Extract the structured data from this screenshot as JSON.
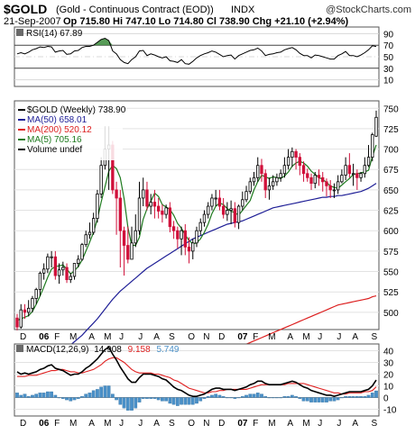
{
  "header": {
    "symbol": "$GOLD",
    "name": "(Gold - Continuous Contract (EOD))",
    "exchange": "INDX",
    "copyright": "@StockCharts.com",
    "date": "21-Sep-2007",
    "ohlc_text": "Op 715.80  Hi 747.10  Lo 714.80  Cl 738.90  Chg +21.10 (+2.94%)",
    "change_arrow": "▲"
  },
  "rsi_panel": {
    "label": "RSI(14) 67.89",
    "ticks": [
      "90",
      "70",
      "50",
      "30",
      "10"
    ]
  },
  "price_panel": {
    "ticks": [
      "750",
      "725",
      "700",
      "675",
      "650",
      "625",
      "600",
      "575",
      "550",
      "525",
      "500"
    ],
    "legend": [
      {
        "text": "$GOLD (Weekly) 738.90",
        "color": "#000000"
      },
      {
        "text": "MA(50) 658.01",
        "color": "#1e1e96"
      },
      {
        "text": "MA(200) 520.12",
        "color": "#dc1e1e"
      },
      {
        "text": "MA(5) 705.16",
        "color": "#1e7a1e"
      },
      {
        "text": "Volume undef",
        "color": "#000000"
      }
    ]
  },
  "macd_panel": {
    "label": "MACD(12,26,9)",
    "macd_value": "14.908",
    "signal_value": "9.158",
    "hist_value": "5.749",
    "ticks": [
      "40",
      "30",
      "20",
      "10",
      "0",
      "-10"
    ]
  },
  "time_axis": [
    "D",
    "06",
    "F",
    "M",
    "A",
    "M",
    "J",
    "J",
    "A",
    "S",
    "O",
    "N",
    "D",
    "07",
    "F",
    "M",
    "A",
    "M",
    "J",
    "J",
    "A",
    "S"
  ],
  "colors": {
    "up": "#000000",
    "down": "#d0103a",
    "ma50": "#1e1e96",
    "ma200": "#dc1e1e",
    "ma5": "#1e7a1e",
    "signal": "#e02020",
    "histogram": "#4a90c8",
    "rsi_fill": "#3a8a3a"
  },
  "chart_data": {
    "type": "candlestick",
    "period": "weekly",
    "x": [
      "2005-12-02",
      "2005-12-09",
      "2005-12-16",
      "2005-12-23",
      "2005-12-30",
      "2006-01-06",
      "2006-01-13",
      "2006-01-20",
      "2006-01-27",
      "2006-02-03",
      "2006-02-10",
      "2006-02-17",
      "2006-02-24",
      "2006-03-03",
      "2006-03-10",
      "2006-03-17",
      "2006-03-24",
      "2006-03-31",
      "2006-04-07",
      "2006-04-14",
      "2006-04-21",
      "2006-04-28",
      "2006-05-05",
      "2006-05-12",
      "2006-05-19",
      "2006-05-26",
      "2006-06-02",
      "2006-06-09",
      "2006-06-16",
      "2006-06-23",
      "2006-06-30",
      "2006-07-07",
      "2006-07-14",
      "2006-07-21",
      "2006-07-28",
      "2006-08-04",
      "2006-08-11",
      "2006-08-18",
      "2006-08-25",
      "2006-09-01",
      "2006-09-08",
      "2006-09-15",
      "2006-09-22",
      "2006-09-29",
      "2006-10-06",
      "2006-10-13",
      "2006-10-20",
      "2006-10-27",
      "2006-11-03",
      "2006-11-10",
      "2006-11-17",
      "2006-11-24",
      "2006-12-01",
      "2006-12-08",
      "2006-12-15",
      "2006-12-22",
      "2006-12-29",
      "2007-01-05",
      "2007-01-12",
      "2007-01-19",
      "2007-01-26",
      "2007-02-02",
      "2007-02-09",
      "2007-02-16",
      "2007-02-23",
      "2007-03-02",
      "2007-03-09",
      "2007-03-16",
      "2007-03-23",
      "2007-03-30",
      "2007-04-06",
      "2007-04-13",
      "2007-04-20",
      "2007-04-27",
      "2007-05-04",
      "2007-05-11",
      "2007-05-18",
      "2007-05-25",
      "2007-06-01",
      "2007-06-08",
      "2007-06-15",
      "2007-06-22",
      "2007-06-29",
      "2007-07-06",
      "2007-07-13",
      "2007-07-20",
      "2007-07-27",
      "2007-08-03",
      "2007-08-10",
      "2007-08-17",
      "2007-08-24",
      "2007-08-31",
      "2007-09-07",
      "2007-09-14",
      "2007-09-21"
    ],
    "open": [
      493,
      482,
      503,
      500,
      505,
      517,
      528,
      548,
      553,
      568,
      568,
      545,
      552,
      555,
      540,
      544,
      560,
      565,
      583,
      595,
      598,
      615,
      645,
      680,
      700,
      705,
      650,
      640,
      600,
      582,
      565,
      585,
      600,
      640,
      650,
      630,
      635,
      630,
      624,
      620,
      628,
      605,
      600,
      590,
      600,
      580,
      575,
      585,
      600,
      610,
      620,
      630,
      640,
      640,
      630,
      620,
      625,
      627,
      610,
      630,
      638,
      648,
      660,
      665,
      680,
      670,
      650,
      655,
      660,
      665,
      670,
      680,
      690,
      697,
      690,
      680,
      670,
      665,
      658,
      668,
      665,
      660,
      655,
      650,
      650,
      660,
      668,
      680,
      670,
      670,
      665,
      670,
      680,
      690,
      715.8
    ],
    "high": [
      498,
      510,
      510,
      515,
      520,
      530,
      550,
      560,
      572,
      575,
      575,
      560,
      562,
      560,
      548,
      558,
      570,
      585,
      600,
      610,
      622,
      650,
      690,
      728,
      728,
      710,
      660,
      650,
      605,
      605,
      605,
      620,
      660,
      665,
      660,
      645,
      650,
      640,
      632,
      632,
      635,
      612,
      605,
      605,
      608,
      592,
      590,
      605,
      615,
      625,
      635,
      645,
      650,
      650,
      640,
      635,
      637,
      635,
      632,
      648,
      655,
      665,
      672,
      690,
      688,
      675,
      665,
      668,
      670,
      675,
      690,
      700,
      702,
      700,
      695,
      685,
      676,
      670,
      672,
      675,
      672,
      664,
      662,
      658,
      668,
      675,
      690,
      695,
      682,
      675,
      672,
      690,
      705,
      720,
      747.1
    ],
    "low": [
      478,
      480,
      492,
      495,
      500,
      510,
      520,
      540,
      548,
      555,
      540,
      535,
      545,
      536,
      536,
      540,
      555,
      563,
      580,
      590,
      595,
      610,
      640,
      675,
      650,
      645,
      595,
      555,
      545,
      560,
      565,
      580,
      595,
      630,
      625,
      620,
      615,
      615,
      610,
      615,
      598,
      590,
      578,
      570,
      570,
      560,
      565,
      580,
      595,
      605,
      615,
      625,
      630,
      625,
      615,
      612,
      608,
      604,
      602,
      625,
      635,
      645,
      655,
      660,
      660,
      640,
      638,
      650,
      655,
      660,
      665,
      675,
      678,
      675,
      668,
      660,
      660,
      650,
      652,
      655,
      648,
      642,
      640,
      640,
      645,
      658,
      662,
      665,
      655,
      650,
      660,
      665,
      678,
      685,
      714.8
    ],
    "close": [
      482,
      503,
      500,
      505,
      517,
      528,
      548,
      553,
      568,
      568,
      545,
      552,
      555,
      540,
      544,
      560,
      565,
      583,
      595,
      598,
      615,
      645,
      680,
      700,
      705,
      650,
      640,
      600,
      582,
      565,
      585,
      600,
      640,
      650,
      630,
      635,
      630,
      624,
      620,
      628,
      605,
      600,
      590,
      600,
      580,
      575,
      585,
      600,
      610,
      620,
      630,
      640,
      640,
      630,
      620,
      625,
      627,
      610,
      630,
      638,
      648,
      660,
      665,
      680,
      670,
      650,
      655,
      660,
      665,
      670,
      680,
      690,
      697,
      690,
      680,
      670,
      665,
      658,
      668,
      665,
      660,
      655,
      650,
      650,
      660,
      668,
      680,
      670,
      670,
      665,
      670,
      680,
      690,
      717.8,
      738.9
    ],
    "ma50": [
      408,
      411,
      414,
      417,
      420,
      423,
      427,
      431,
      435,
      440,
      444,
      448,
      452,
      456,
      460,
      464,
      468,
      472,
      477,
      482,
      487,
      492,
      498,
      504,
      510,
      516,
      521,
      526,
      530,
      534,
      538,
      542,
      546,
      550,
      554,
      557,
      560,
      563,
      566,
      569,
      572,
      575,
      578,
      581,
      584,
      587,
      590,
      592,
      594,
      596,
      598,
      600,
      602,
      604,
      606,
      608,
      609,
      610,
      611,
      612,
      614,
      616,
      618,
      620,
      622,
      624,
      626,
      628,
      629,
      630,
      631,
      632,
      633,
      634,
      635,
      636,
      637,
      638,
      639,
      640,
      641,
      641,
      642,
      642,
      643,
      643,
      644,
      645,
      646,
      647,
      648,
      650,
      652,
      655,
      658.01
    ],
    "ma200": [
      400,
      401,
      402,
      403,
      404,
      405,
      406,
      407,
      408,
      409,
      410,
      411,
      412,
      413,
      414,
      415,
      416,
      417,
      418,
      419,
      420,
      421,
      422,
      423,
      424,
      425,
      426,
      427,
      428,
      429,
      430,
      431,
      432,
      433,
      434,
      435,
      436,
      437,
      438,
      439,
      440,
      441,
      442,
      443,
      444,
      445,
      446,
      447,
      448,
      449,
      450,
      451,
      452,
      453,
      454,
      455,
      456,
      457,
      458,
      459,
      461,
      463,
      465,
      467,
      469,
      471,
      473,
      475,
      477,
      479,
      481,
      483,
      485,
      487,
      489,
      491,
      493,
      495,
      497,
      499,
      501,
      503,
      505,
      507,
      509,
      510,
      511,
      512,
      513,
      514,
      515,
      516,
      517,
      519,
      520.12
    ],
    "ma5": [
      490,
      492,
      494,
      496,
      501,
      510,
      520,
      531,
      543,
      553,
      556,
      557,
      558,
      553,
      547,
      551,
      556,
      564,
      575,
      586,
      598,
      614,
      635,
      654,
      673,
      680,
      676,
      665,
      639,
      604,
      582,
      582,
      592,
      614,
      627,
      636,
      646,
      642,
      632,
      629,
      626,
      619,
      609,
      603,
      595,
      588,
      584,
      585,
      590,
      598,
      608,
      621,
      630,
      634,
      632,
      627,
      624,
      622,
      619,
      625,
      631,
      637,
      650,
      660,
      668,
      666,
      664,
      666,
      665,
      664,
      667,
      672,
      679,
      683,
      685,
      683,
      679,
      673,
      669,
      665,
      663,
      659,
      655,
      653,
      652,
      656,
      660,
      664,
      669,
      670,
      671,
      672,
      674,
      691,
      705.16
    ],
    "rsi": [
      55,
      57,
      55,
      58,
      62,
      64,
      67,
      66,
      68,
      67,
      58,
      60,
      61,
      54,
      55,
      60,
      61,
      66,
      68,
      68,
      70,
      75,
      80,
      82,
      78,
      60,
      55,
      45,
      40,
      38,
      45,
      50,
      60,
      61,
      52,
      55,
      53,
      50,
      48,
      50,
      43,
      42,
      40,
      45,
      38,
      37,
      42,
      48,
      52,
      55,
      57,
      60,
      58,
      54,
      50,
      52,
      53,
      46,
      52,
      55,
      58,
      61,
      62,
      65,
      60,
      52,
      54,
      55,
      57,
      58,
      62,
      64,
      66,
      62,
      56,
      52,
      52,
      48,
      53,
      52,
      50,
      48,
      46,
      46,
      52,
      55,
      59,
      52,
      52,
      50,
      53,
      57,
      62,
      69,
      67.89
    ],
    "macd": [
      22,
      20,
      21,
      20,
      21,
      22,
      24,
      25,
      27,
      28,
      25,
      24,
      23,
      21,
      19,
      20,
      20,
      22,
      25,
      27,
      30,
      33,
      37,
      41,
      43,
      37,
      32,
      26,
      21,
      16,
      13,
      13,
      17,
      20,
      20,
      20,
      19,
      18,
      16,
      15,
      12,
      9,
      7,
      6,
      4,
      2,
      1,
      1,
      2,
      3,
      5,
      7,
      8,
      8,
      7,
      7,
      7,
      6,
      7,
      8,
      9,
      11,
      12,
      14,
      14,
      12,
      11,
      11,
      11,
      11,
      12,
      13,
      14,
      13,
      11,
      9,
      8,
      6,
      5,
      4,
      3,
      2,
      2,
      1,
      2,
      3,
      4,
      5,
      5,
      5,
      5,
      6,
      7,
      10,
      14.908
    ],
    "signal": [
      18,
      18,
      18,
      19,
      19,
      19,
      20,
      21,
      22,
      23,
      23,
      24,
      24,
      23,
      22,
      22,
      21,
      21,
      22,
      23,
      24,
      26,
      28,
      31,
      33,
      34,
      34,
      32,
      30,
      27,
      24,
      22,
      21,
      21,
      21,
      21,
      20,
      20,
      19,
      18,
      17,
      15,
      14,
      12,
      10,
      8,
      7,
      6,
      5,
      4,
      4,
      5,
      5,
      6,
      6,
      7,
      7,
      7,
      7,
      7,
      7,
      8,
      9,
      10,
      11,
      11,
      11,
      11,
      11,
      11,
      11,
      12,
      12,
      12,
      12,
      12,
      11,
      10,
      9,
      8,
      7,
      6,
      5,
      4,
      4,
      3,
      3,
      4,
      4,
      4,
      4,
      5,
      5,
      6,
      9.158
    ],
    "histogram": [
      4,
      2,
      3,
      1,
      2,
      3,
      4,
      4,
      5,
      5,
      2,
      0,
      -1,
      -2,
      -3,
      -2,
      -1,
      1,
      3,
      4,
      6,
      7,
      9,
      10,
      10,
      3,
      -2,
      -6,
      -9,
      -11,
      -11,
      -9,
      -4,
      -1,
      -1,
      -1,
      -1,
      -2,
      -3,
      -3,
      -5,
      -6,
      -7,
      -6,
      -6,
      -6,
      -6,
      -5,
      -3,
      -1,
      1,
      2,
      3,
      2,
      1,
      0,
      0,
      -1,
      0,
      1,
      2,
      3,
      3,
      4,
      3,
      1,
      0,
      0,
      0,
      0,
      1,
      1,
      2,
      1,
      -1,
      -3,
      -3,
      -4,
      -4,
      -4,
      -4,
      -4,
      -3,
      -3,
      -2,
      0,
      1,
      1,
      1,
      1,
      1,
      1,
      2,
      4,
      5.749
    ],
    "rsi_range": [
      0,
      100
    ],
    "price_range": [
      480,
      758
    ],
    "macd_range": [
      -15,
      45
    ],
    "grid": true
  }
}
